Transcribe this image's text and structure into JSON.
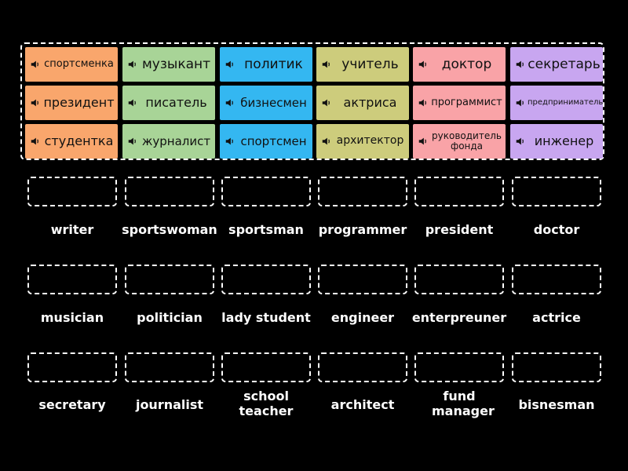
{
  "tiles": [
    {
      "text": "спортсменка",
      "color": "#f9a66c",
      "fs": 13
    },
    {
      "text": "музыкант",
      "color": "#a8d497",
      "fs": 17
    },
    {
      "text": "политик",
      "color": "#34b7f1",
      "fs": 17
    },
    {
      "text": "учитель",
      "color": "#cdcc7c",
      "fs": 17
    },
    {
      "text": "доктор",
      "color": "#f9a3a7",
      "fs": 17
    },
    {
      "text": "секретарь",
      "color": "#c8a6f0",
      "fs": 17
    },
    {
      "text": "президент",
      "color": "#f9a66c",
      "fs": 16
    },
    {
      "text": "писатель",
      "color": "#a8d497",
      "fs": 16
    },
    {
      "text": "бизнесмен",
      "color": "#34b7f1",
      "fs": 15
    },
    {
      "text": "актриса",
      "color": "#cdcc7c",
      "fs": 16
    },
    {
      "text": "программист",
      "color": "#f9a3a7",
      "fs": 13
    },
    {
      "text": "предприниматель",
      "color": "#c8a6f0",
      "fs": 10
    },
    {
      "text": "студентка",
      "color": "#f9a66c",
      "fs": 16
    },
    {
      "text": "журналист",
      "color": "#a8d497",
      "fs": 15
    },
    {
      "text": "спортсмен",
      "color": "#34b7f1",
      "fs": 15
    },
    {
      "text": "архитектор",
      "color": "#cdcc7c",
      "fs": 14
    },
    {
      "text": "руководитель фонда",
      "color": "#f9a3a7",
      "fs": 12
    },
    {
      "text": "инженер",
      "color": "#c8a6f0",
      "fs": 16
    }
  ],
  "targets": [
    "writer",
    "sportswoman",
    "sportsman",
    "programmer",
    "president",
    "doctor",
    "musician",
    "politician",
    "lady student",
    "engineer",
    "enterpreuner",
    "actrice",
    "secretary",
    "journalist",
    "school teacher",
    "architect",
    "fund manager",
    "bisnesman"
  ],
  "icons": {
    "tile": "speaker-icon"
  }
}
